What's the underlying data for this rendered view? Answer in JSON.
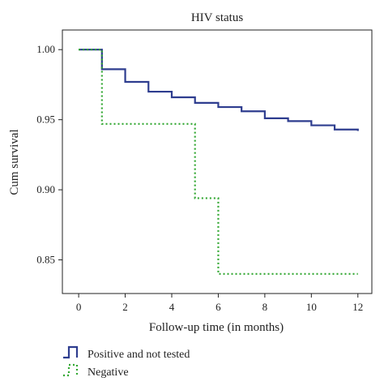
{
  "chart_data": {
    "type": "line",
    "subtype": "step",
    "title": "HIV status",
    "xlabel": "Follow-up time (in months)",
    "ylabel": "Cum survival",
    "xlim": [
      -0.7,
      12.6
    ],
    "ylim": [
      0.826,
      1.014
    ],
    "x_ticks": [
      0,
      2,
      4,
      6,
      8,
      10,
      12
    ],
    "y_ticks": [
      0.85,
      0.9,
      0.95,
      1.0
    ],
    "y_tick_labels": [
      "0.85",
      "0.90",
      "0.95",
      "1.00"
    ],
    "grid": false,
    "legend_position": "bottom-left",
    "series": [
      {
        "name": "Positive and not tested",
        "color": "#2e3d8f",
        "line_style": "solid",
        "x": [
          0,
          1,
          2,
          3,
          4,
          5,
          6,
          7,
          8,
          9,
          10,
          11,
          12
        ],
        "y": [
          1.0,
          0.986,
          0.977,
          0.97,
          0.966,
          0.962,
          0.959,
          0.956,
          0.951,
          0.949,
          0.946,
          0.943,
          0.942
        ]
      },
      {
        "name": "Negative",
        "color": "#33a833",
        "line_style": "dotted",
        "x": [
          0,
          1,
          5,
          6,
          12
        ],
        "y": [
          1.0,
          0.947,
          0.894,
          0.84,
          0.84
        ]
      }
    ]
  }
}
